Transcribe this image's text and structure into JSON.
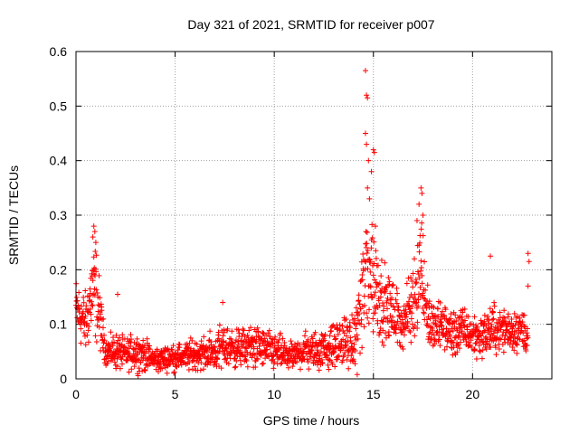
{
  "chart_data": {
    "type": "scatter",
    "title": "Day 321 of 2021, SRMTID for receiver p007",
    "xlabel": "GPS time / hours",
    "ylabel": "SRMTID / TECUs",
    "xlim": [
      0,
      24
    ],
    "ylim": [
      0,
      0.6
    ],
    "xticks": [
      0,
      5,
      10,
      15,
      20
    ],
    "yticks": [
      0,
      0.1,
      0.2,
      0.3,
      0.4,
      0.5,
      0.6
    ],
    "xtick_labels": [
      "0",
      "5",
      "10",
      "15",
      "20"
    ],
    "ytick_labels": [
      "0",
      "0.1",
      "0.2",
      "0.3",
      "0.4",
      "0.5",
      "0.6"
    ],
    "grid": true,
    "marker": "+",
    "color": "#ff0000",
    "series": [
      {
        "name": "SRMTID",
        "envelope_hours": [
          0,
          0.5,
          0.8,
          1.0,
          1.3,
          1.5,
          2.0,
          2.5,
          3.0,
          4.0,
          5.0,
          6.0,
          7.0,
          7.5,
          8.0,
          9.0,
          10.0,
          11.0,
          11.5,
          12.0,
          13.0,
          13.5,
          14.0,
          14.5,
          14.8,
          15.0,
          15.5,
          16.0,
          16.5,
          17.0,
          17.4,
          17.7,
          18.0,
          18.5,
          19.0,
          19.5,
          20.0,
          20.5,
          21.0,
          21.5,
          22.0,
          22.5,
          22.8
        ],
        "envelope_base": [
          0.13,
          0.1,
          0.16,
          0.16,
          0.09,
          0.05,
          0.05,
          0.045,
          0.05,
          0.035,
          0.04,
          0.045,
          0.05,
          0.06,
          0.055,
          0.06,
          0.05,
          0.04,
          0.055,
          0.05,
          0.06,
          0.07,
          0.06,
          0.16,
          0.22,
          0.18,
          0.14,
          0.12,
          0.1,
          0.14,
          0.22,
          0.12,
          0.09,
          0.1,
          0.08,
          0.09,
          0.08,
          0.08,
          0.09,
          0.09,
          0.09,
          0.09,
          0.08
        ],
        "envelope_spread": [
          0.05,
          0.05,
          0.08,
          0.08,
          0.04,
          0.02,
          0.03,
          0.025,
          0.03,
          0.02,
          0.02,
          0.025,
          0.03,
          0.04,
          0.03,
          0.035,
          0.03,
          0.02,
          0.03,
          0.03,
          0.035,
          0.04,
          0.04,
          0.1,
          0.15,
          0.1,
          0.06,
          0.05,
          0.04,
          0.07,
          0.1,
          0.05,
          0.04,
          0.04,
          0.04,
          0.035,
          0.035,
          0.035,
          0.04,
          0.035,
          0.035,
          0.035,
          0.03
        ],
        "outliers": [
          {
            "x": 14.6,
            "y": 0.565
          },
          {
            "x": 14.65,
            "y": 0.52
          },
          {
            "x": 14.7,
            "y": 0.515
          },
          {
            "x": 14.6,
            "y": 0.45
          },
          {
            "x": 14.65,
            "y": 0.43
          },
          {
            "x": 14.75,
            "y": 0.4
          },
          {
            "x": 15.0,
            "y": 0.42
          },
          {
            "x": 15.05,
            "y": 0.415
          },
          {
            "x": 14.7,
            "y": 0.35
          },
          {
            "x": 14.8,
            "y": 0.33
          },
          {
            "x": 14.9,
            "y": 0.38
          },
          {
            "x": 15.1,
            "y": 0.28
          },
          {
            "x": 17.4,
            "y": 0.35
          },
          {
            "x": 17.45,
            "y": 0.34
          },
          {
            "x": 17.5,
            "y": 0.3
          },
          {
            "x": 17.3,
            "y": 0.32
          },
          {
            "x": 17.2,
            "y": 0.29
          },
          {
            "x": 0.9,
            "y": 0.28
          },
          {
            "x": 0.95,
            "y": 0.27
          },
          {
            "x": 0.85,
            "y": 0.26
          },
          {
            "x": 1.0,
            "y": 0.25
          },
          {
            "x": 20.9,
            "y": 0.225
          },
          {
            "x": 22.8,
            "y": 0.23
          },
          {
            "x": 22.85,
            "y": 0.215
          },
          {
            "x": 22.8,
            "y": 0.17
          },
          {
            "x": 7.4,
            "y": 0.14
          },
          {
            "x": 2.1,
            "y": 0.155
          }
        ]
      }
    ]
  }
}
